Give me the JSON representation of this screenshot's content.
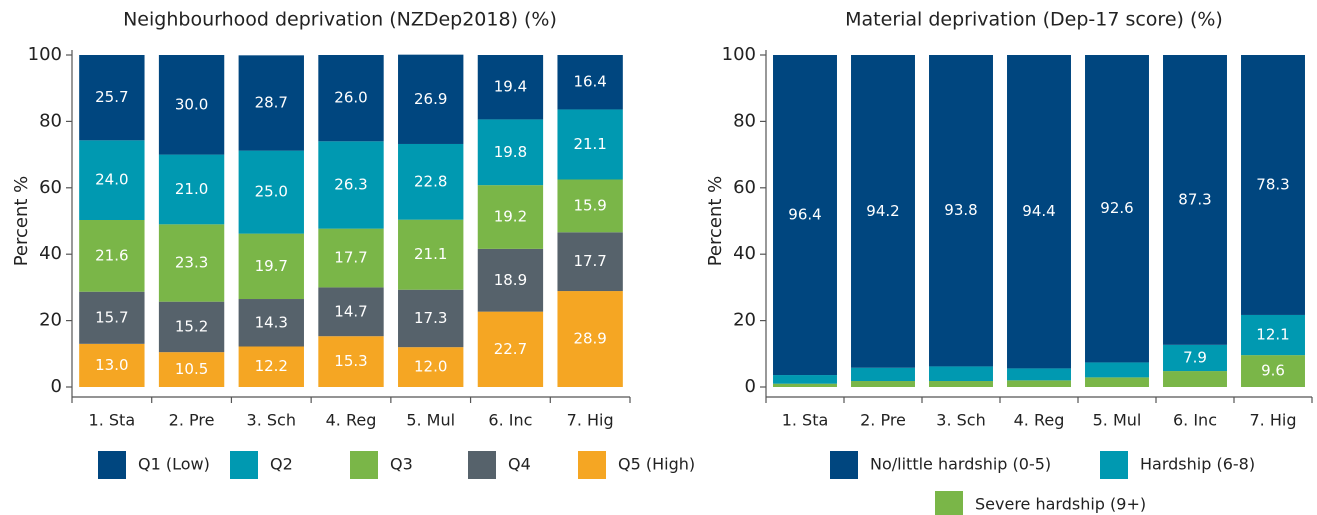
{
  "chart_data": [
    {
      "type": "stacked_bar",
      "title": "Neighbourhood deprivation (NZDep2018) (%)",
      "y_label": "Percent %",
      "categories": [
        "1. Sta",
        "2. Pre",
        "3. Sch",
        "4. Reg",
        "5. Mul",
        "6. Inc",
        "7. Hig"
      ],
      "ylim": [
        0,
        100
      ],
      "yticks": [
        0,
        20,
        40,
        60,
        80,
        100
      ],
      "grid": false,
      "series": [
        {
          "name": "Q1 (Low)",
          "color": "#00467f",
          "values": [
            25.7,
            30.0,
            28.7,
            26.0,
            26.9,
            19.4,
            16.4
          ],
          "value_labels": [
            "25.7",
            "30.0",
            "28.7",
            "26.0",
            "26.9",
            "19.4",
            "16.4"
          ]
        },
        {
          "name": "Q2",
          "color": "#0099b1",
          "values": [
            24.0,
            21.0,
            25.0,
            26.3,
            22.8,
            19.8,
            21.1
          ],
          "value_labels": [
            "24.0",
            "21.0",
            "25.0",
            "26.3",
            "22.8",
            "19.8",
            "21.1"
          ]
        },
        {
          "name": "Q3",
          "color": "#7ab648",
          "values": [
            21.6,
            23.3,
            19.7,
            17.7,
            21.1,
            19.2,
            15.9
          ],
          "value_labels": [
            "21.6",
            "23.3",
            "19.7",
            "17.7",
            "21.1",
            "19.2",
            "15.9"
          ]
        },
        {
          "name": "Q4",
          "color": "#56626b",
          "values": [
            15.7,
            15.2,
            14.3,
            14.7,
            17.3,
            18.9,
            17.7
          ],
          "value_labels": [
            "15.7",
            "15.2",
            "14.3",
            "14.7",
            "17.3",
            "18.9",
            "17.7"
          ]
        },
        {
          "name": "Q5 (High)",
          "color": "#f5a623",
          "values": [
            13.0,
            10.5,
            12.2,
            15.3,
            12.0,
            22.7,
            28.9
          ],
          "value_labels": [
            "13.0",
            "10.5",
            "12.2",
            "15.3",
            "12.0",
            "22.7",
            "28.9"
          ]
        }
      ]
    },
    {
      "type": "stacked_bar",
      "title": "Material deprivation (Dep-17 score) (%)",
      "y_label": "Percent %",
      "categories": [
        "1. Sta",
        "2. Pre",
        "3. Sch",
        "4. Reg",
        "5. Mul",
        "6. Inc",
        "7. Hig"
      ],
      "ylim": [
        0,
        100
      ],
      "yticks": [
        0,
        20,
        40,
        60,
        80,
        100
      ],
      "grid": false,
      "series": [
        {
          "name": "No/little hardship (0-5)",
          "color": "#00467f",
          "values": [
            96.4,
            94.2,
            93.8,
            94.4,
            92.6,
            87.3,
            78.3
          ],
          "value_labels": [
            "96.4",
            "94.2",
            "93.8",
            "94.4",
            "92.6",
            "87.3",
            "78.3"
          ]
        },
        {
          "name": "Hardship (6-8)",
          "color": "#0099b1",
          "values": [
            2.6,
            4.0,
            4.4,
            3.6,
            4.5,
            7.9,
            12.1
          ],
          "value_labels": [
            null,
            null,
            null,
            null,
            null,
            "7.9",
            "12.1"
          ]
        },
        {
          "name": "Severe hardship (9+)",
          "color": "#7ab648",
          "values": [
            1.0,
            1.8,
            1.8,
            2.0,
            2.9,
            4.8,
            9.6
          ],
          "value_labels": [
            null,
            null,
            null,
            null,
            null,
            null,
            "9.6"
          ]
        }
      ]
    }
  ]
}
